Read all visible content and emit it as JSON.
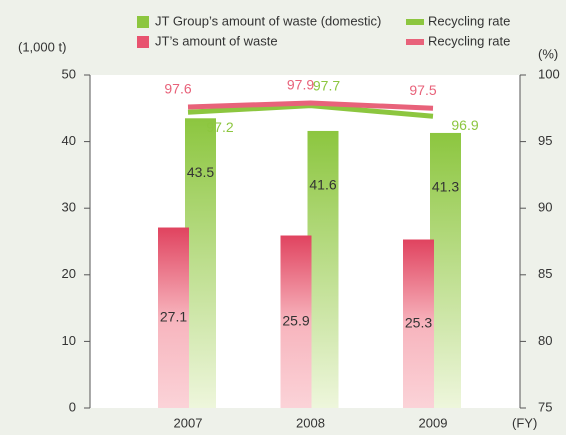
{
  "chart_data": {
    "type": "bar",
    "categories": [
      "2007",
      "2008",
      "2009"
    ],
    "y_label": "(1,000 t)",
    "y2_label": "(%)",
    "x_label": "(FY)",
    "ylim": [
      0,
      50
    ],
    "yticks": [
      0,
      10,
      20,
      30,
      40,
      50
    ],
    "y2lim": [
      75,
      100
    ],
    "y2ticks": [
      75,
      80,
      85,
      90,
      95,
      100
    ],
    "series": [
      {
        "name": "JT Group’s amount of waste (domestic)",
        "type": "bar",
        "color": "#8cc63f",
        "values": [
          43.5,
          41.6,
          41.3
        ]
      },
      {
        "name": "Recycling rate",
        "type": "line",
        "axis": "y2",
        "color": "#8cc63f",
        "values": [
          97.2,
          97.7,
          96.9
        ]
      },
      {
        "name": "JT’s amount of waste",
        "type": "bar",
        "color": "#e8536f",
        "values": [
          27.1,
          25.9,
          25.3
        ]
      },
      {
        "name": "Recycling rate",
        "type": "line",
        "axis": "y2",
        "color": "#e8627a",
        "values": [
          97.6,
          97.9,
          97.5
        ]
      }
    ]
  }
}
